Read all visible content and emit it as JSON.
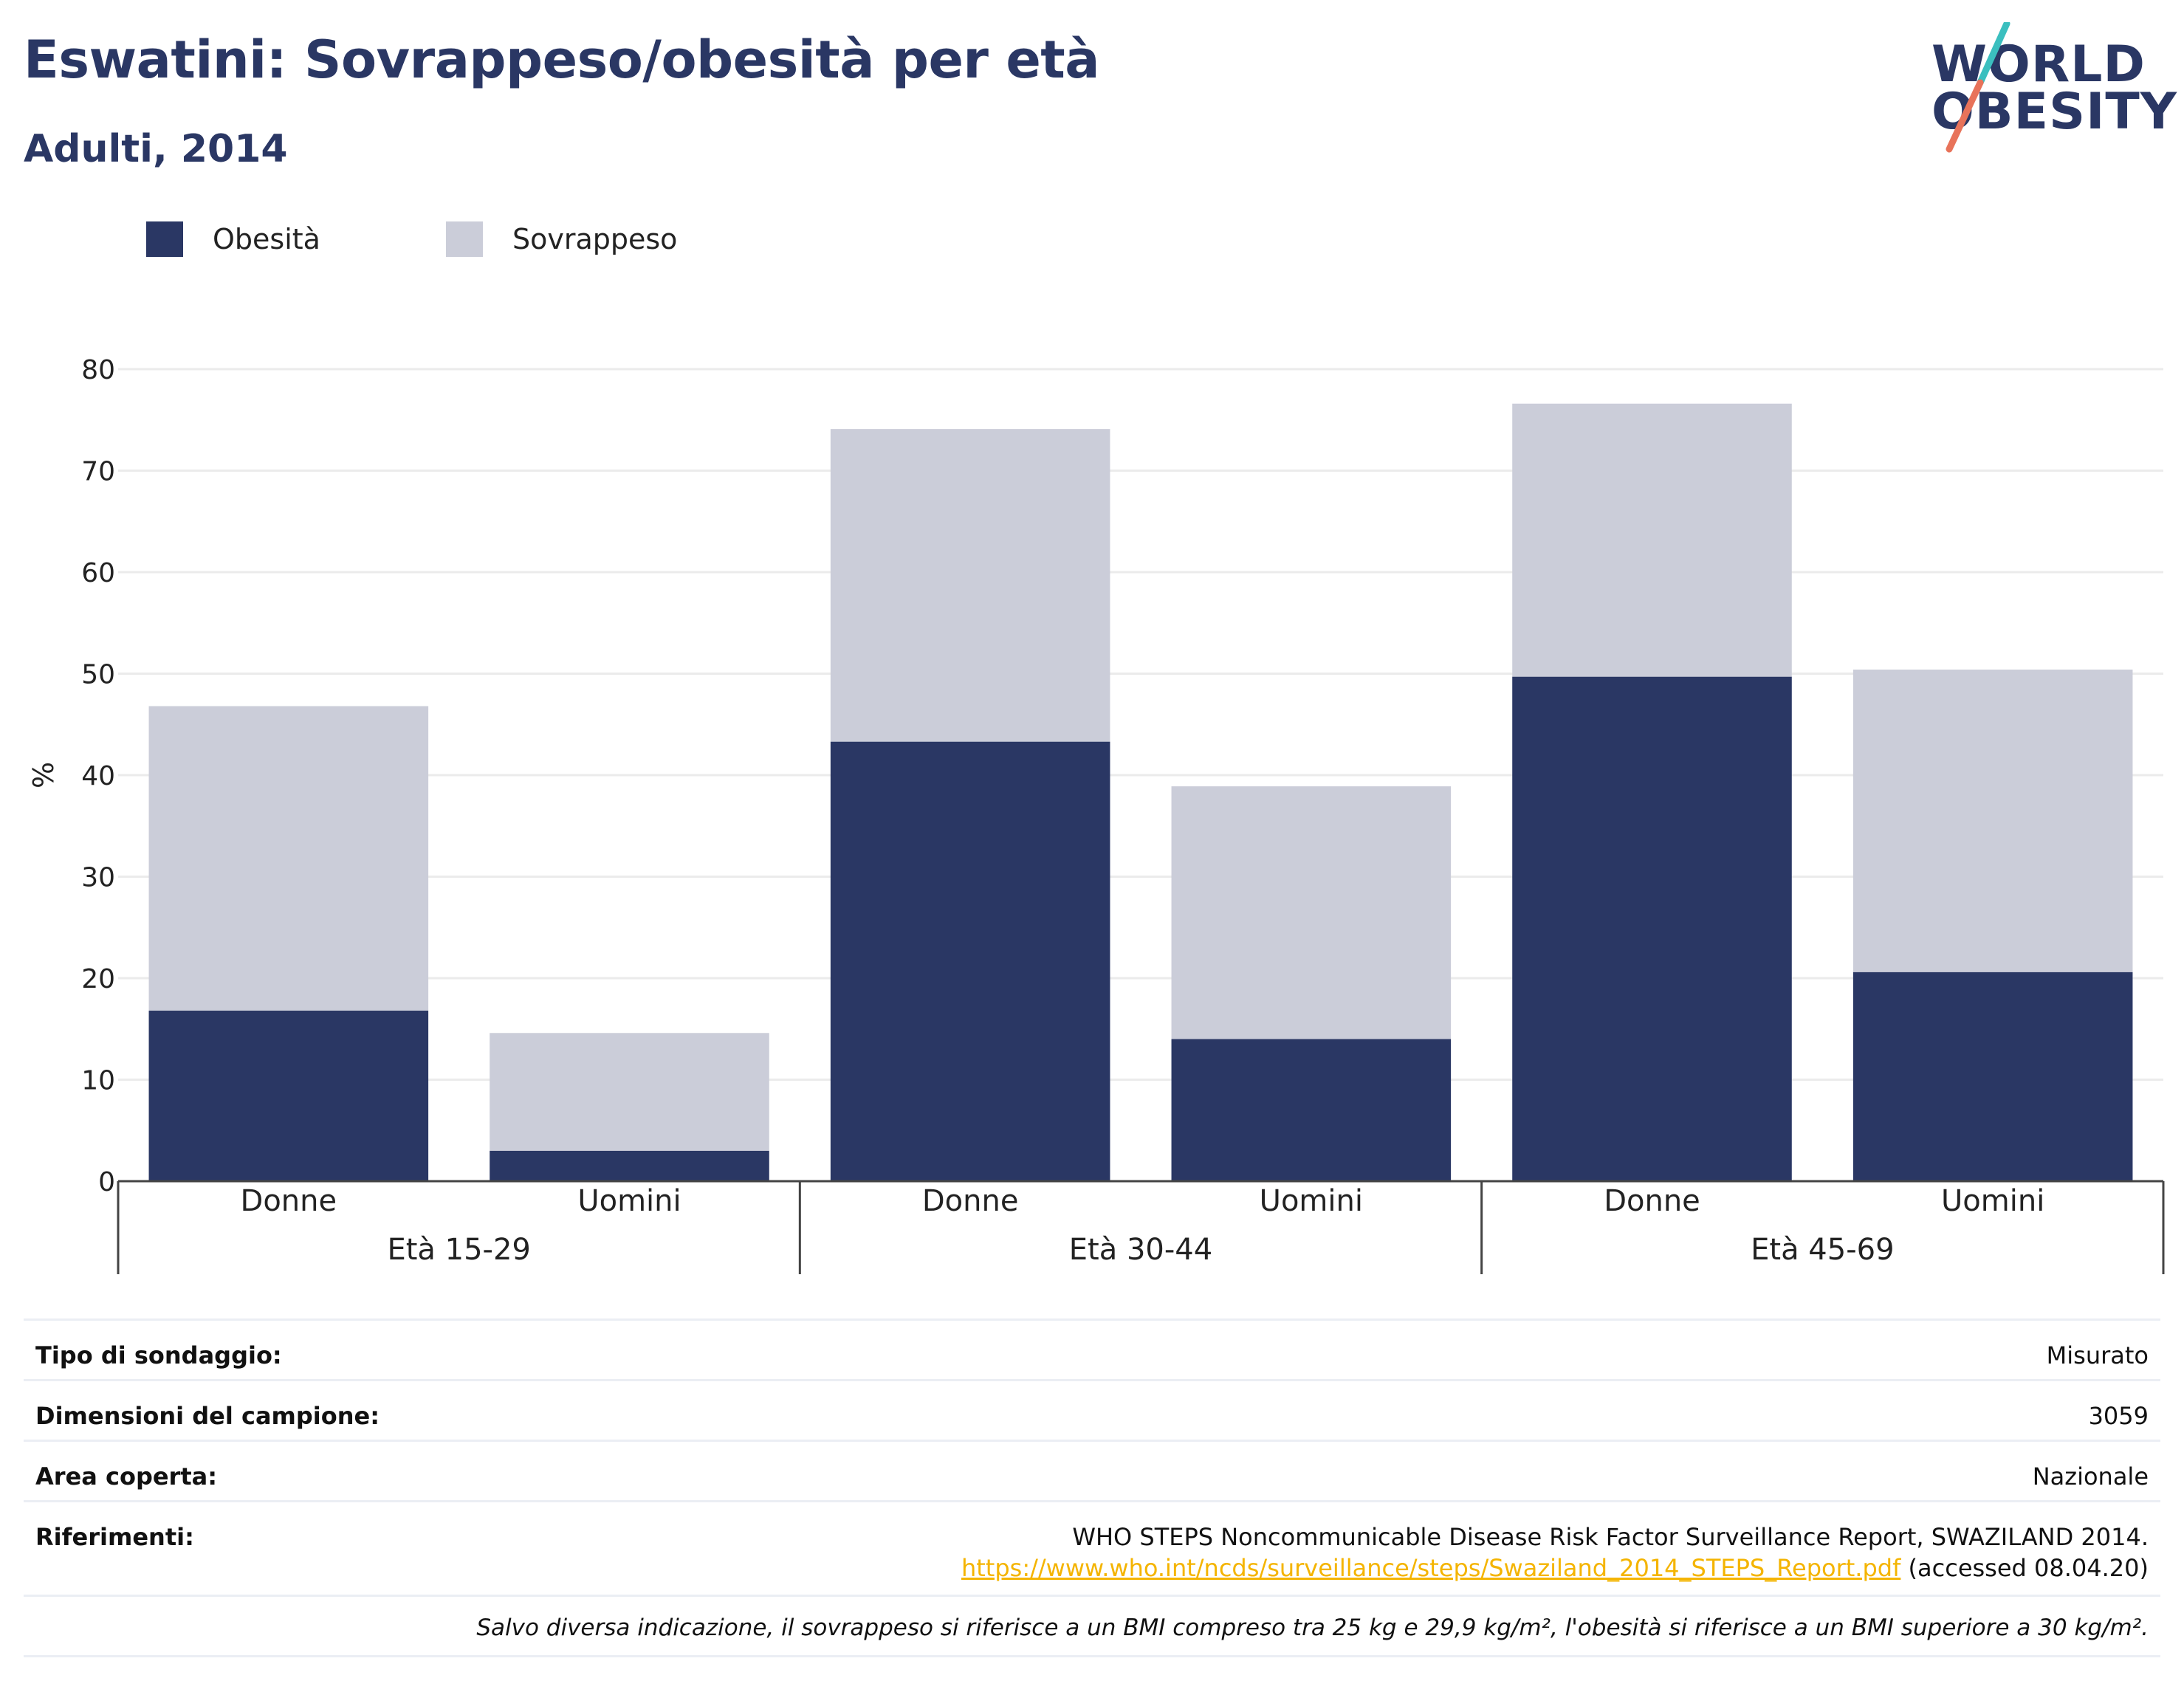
{
  "header": {
    "title": "Eswatini: Sovrappeso/obesità per età",
    "subtitle": "Adulti, 2014"
  },
  "logo": {
    "line1": "WORLD",
    "line2": "OBESITY"
  },
  "colors": {
    "obesity": "#2a3764",
    "overweight": "#cbcdd9",
    "brand_navy": "#2a3764",
    "logo_teal": "#3bbfbf",
    "logo_coral": "#e8735a",
    "link": "#f4b400"
  },
  "legend": [
    {
      "label": "Obesità",
      "color": "#2a3764"
    },
    {
      "label": "Sovrappeso",
      "color": "#cbcdd9"
    }
  ],
  "chart_data": {
    "type": "bar",
    "stacked": true,
    "title": "Eswatini: Sovrappeso/obesità per età",
    "subtitle": "Adulti, 2014",
    "ylabel": "%",
    "ylim": [
      0,
      80
    ],
    "yticks": [
      0,
      10,
      20,
      30,
      40,
      50,
      60,
      70,
      80
    ],
    "grid": true,
    "legend_position": "top-left",
    "categories": [
      "Donne",
      "Uomini",
      "Donne",
      "Uomini",
      "Donne",
      "Uomini"
    ],
    "groups": [
      {
        "label": "Età 15-29",
        "categories": [
          "Donne",
          "Uomini"
        ]
      },
      {
        "label": "Età 30-44",
        "categories": [
          "Donne",
          "Uomini"
        ]
      },
      {
        "label": "Età 45-69",
        "categories": [
          "Donne",
          "Uomini"
        ]
      }
    ],
    "series": [
      {
        "name": "Obesità",
        "values": [
          16.8,
          3.0,
          43.3,
          14.0,
          49.7,
          20.6
        ]
      },
      {
        "name": "Sovrappeso",
        "values": [
          30.0,
          11.6,
          30.8,
          24.9,
          26.9,
          29.8
        ]
      }
    ]
  },
  "info": {
    "rows": [
      {
        "key": "Tipo di sondaggio:",
        "value": "Misurato"
      },
      {
        "key": "Dimensioni del campione:",
        "value": "3059"
      },
      {
        "key": "Area coperta:",
        "value": "Nazionale"
      }
    ],
    "references": {
      "key": "Riferimenti:",
      "line1": "WHO STEPS Noncommunicable Disease Risk Factor Surveillance Report, SWAZILAND 2014.",
      "link": "https://www.who.int/ncds/surveillance/steps/Swaziland_2014_STEPS_Report.pdf",
      "accessed": "(accessed 08.04.20)"
    },
    "note": "Salvo diversa indicazione, il sovrappeso si riferisce a un BMI compreso tra 25 kg e 29,9 kg/m², l'obesità si riferisce a un BMI superiore a 30 kg/m²."
  }
}
